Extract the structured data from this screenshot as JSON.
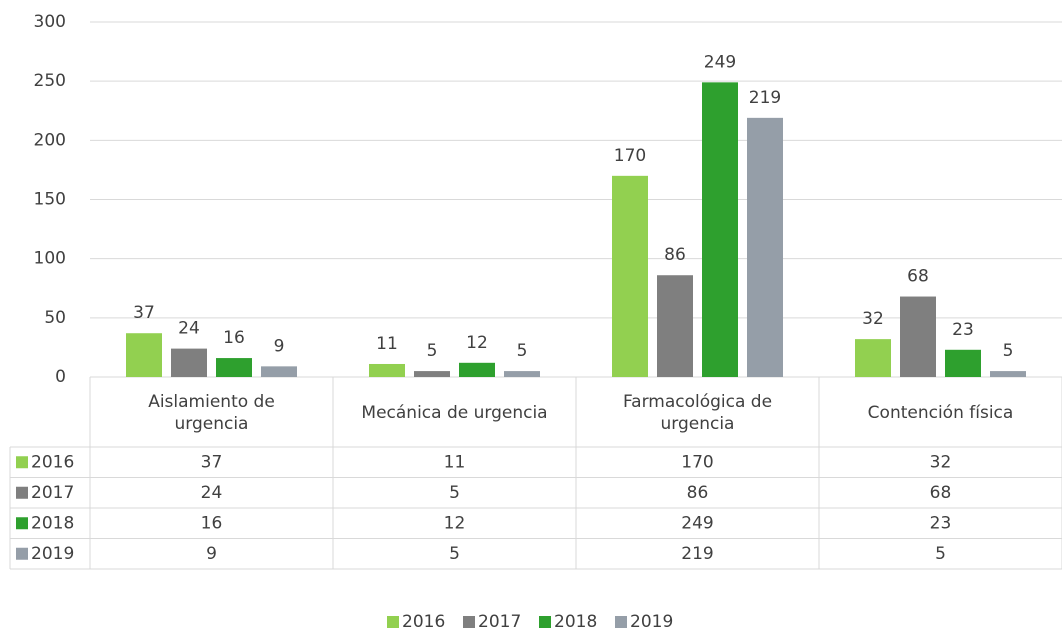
{
  "chart_data": {
    "type": "bar",
    "categories": [
      "Aislamiento de urgencia",
      "Mecánica de urgencia",
      "Farmacológica de urgencia",
      "Contención física"
    ],
    "series": [
      {
        "name": "2016",
        "color": "#92d050",
        "values": [
          37,
          11,
          170,
          32
        ]
      },
      {
        "name": "2017",
        "color": "#7f7f7f",
        "values": [
          24,
          5,
          86,
          68
        ]
      },
      {
        "name": "2018",
        "color": "#2ea02e",
        "values": [
          16,
          12,
          249,
          23
        ]
      },
      {
        "name": "2019",
        "color": "#959ea8",
        "values": [
          9,
          5,
          219,
          5
        ]
      }
    ],
    "ylim": [
      0,
      300
    ],
    "yticks": [
      0,
      50,
      100,
      150,
      200,
      250,
      300
    ],
    "grid": true,
    "data_table": true,
    "legend": "bottom"
  }
}
